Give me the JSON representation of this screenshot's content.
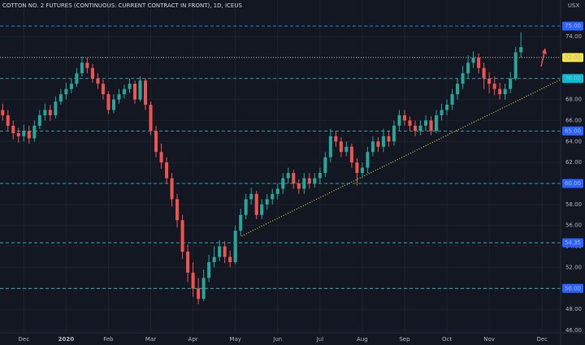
{
  "chart_data": {
    "type": "candlestick",
    "title": "COTTON NO. 2 FUTURES (CONTINUOUS: CURRENT CONTRACT IN FRONT), 1D, ICEUS",
    "currency": "USX",
    "up_color": "#26a69a",
    "down_color": "#ef5350",
    "grid": true,
    "categories": [
      null,
      null,
      null,
      null,
      "Dec",
      null,
      null,
      null,
      null,
      null,
      null,
      null,
      "2020",
      null,
      null,
      null,
      null,
      null,
      null,
      null,
      "Feb",
      null,
      null,
      null,
      null,
      null,
      null,
      null,
      "Mar",
      null,
      null,
      null,
      null,
      null,
      null,
      null,
      "Apr",
      null,
      null,
      null,
      null,
      null,
      null,
      null,
      "May",
      null,
      null,
      null,
      null,
      null,
      null,
      null,
      "Jun",
      null,
      null,
      null,
      null,
      null,
      null,
      null,
      "Jul",
      null,
      null,
      null,
      null,
      null,
      null,
      null,
      "Aug",
      null,
      null,
      null,
      null,
      null,
      null,
      null,
      "Sep",
      null,
      null,
      null,
      null,
      null,
      null,
      null,
      "Oct",
      null,
      null,
      null,
      null,
      null,
      null,
      null,
      "Nov",
      null,
      null,
      null,
      null,
      null,
      null,
      null,
      null,
      null,
      "Dec",
      null,
      null,
      null
    ],
    "open": [
      67.0,
      66.5,
      65.5,
      64.8,
      64.5,
      65.0,
      64.3,
      65.5,
      66.5,
      67.0,
      66.5,
      67.8,
      68.5,
      69.0,
      69.5,
      70.5,
      71.5,
      71.0,
      70.0,
      69.5,
      68.5,
      67.0,
      68.0,
      68.5,
      69.0,
      69.5,
      68.0,
      69.8,
      67.5,
      65.0,
      63.0,
      62.0,
      60.5,
      58.5,
      56.5,
      53.5,
      51.5,
      50.0,
      49.0,
      51.0,
      52.5,
      53.0,
      54.0,
      53.0,
      52.5,
      55.5,
      57.0,
      58.5,
      59.0,
      57.0,
      58.0,
      58.5,
      59.0,
      59.5,
      60.5,
      61.0,
      60.0,
      59.5,
      60.5,
      60.0,
      60.5,
      61.0,
      62.5,
      64.5,
      64.0,
      63.0,
      63.5,
      62.0,
      61.0,
      61.5,
      63.0,
      64.0,
      63.5,
      64.5,
      64.0,
      65.5,
      66.5,
      66.0,
      65.5,
      65.0,
      65.5,
      66.0,
      65.0,
      66.5,
      67.0,
      67.5,
      68.5,
      69.5,
      70.5,
      71.5,
      72.0,
      71.0,
      70.0,
      69.5,
      69.0,
      68.5,
      69.0,
      70.0,
      72.5,
      null,
      null,
      null,
      null,
      null,
      null,
      null
    ],
    "high": [
      67.6,
      67.0,
      66.0,
      65.3,
      65.6,
      65.5,
      66.0,
      67.0,
      67.6,
      67.5,
      68.3,
      69.0,
      69.6,
      70.0,
      71.0,
      72.1,
      72.0,
      71.4,
      70.5,
      69.9,
      68.8,
      68.5,
      69.0,
      69.4,
      70.0,
      69.8,
      70.2,
      70.0,
      67.8,
      65.5,
      63.8,
      62.5,
      61.0,
      59.0,
      57.0,
      54.2,
      52.5,
      51.0,
      51.8,
      53.2,
      54.0,
      54.6,
      54.5,
      53.6,
      56.0,
      57.6,
      59.0,
      59.6,
      59.3,
      58.5,
      59.0,
      59.5,
      60.0,
      61.0,
      61.5,
      61.3,
      60.4,
      61.0,
      61.0,
      61.0,
      61.5,
      63.0,
      65.2,
      65.0,
      64.4,
      64.0,
      63.8,
      62.4,
      62.0,
      63.5,
      64.5,
      64.4,
      65.2,
      65.0,
      66.0,
      67.0,
      67.0,
      66.4,
      66.0,
      66.0,
      66.5,
      66.4,
      67.0,
      67.6,
      68.0,
      69.0,
      70.0,
      71.2,
      72.2,
      72.6,
      72.4,
      71.5,
      70.6,
      70.2,
      69.6,
      69.5,
      70.6,
      73.0,
      74.4,
      null,
      null,
      null,
      null,
      null,
      null,
      null
    ],
    "low": [
      66.0,
      65.0,
      64.2,
      63.9,
      64.0,
      63.8,
      64.0,
      65.2,
      66.0,
      66.0,
      66.2,
      67.5,
      68.0,
      68.6,
      69.2,
      70.2,
      70.5,
      69.6,
      69.0,
      68.0,
      66.6,
      66.7,
      67.6,
      68.1,
      68.6,
      67.6,
      67.8,
      67.0,
      64.6,
      62.5,
      61.4,
      60.0,
      57.8,
      55.8,
      52.8,
      50.6,
      49.2,
      48.5,
      48.8,
      50.6,
      52.0,
      52.6,
      52.4,
      52.0,
      52.3,
      55.0,
      56.6,
      58.0,
      56.6,
      56.6,
      57.5,
      58.0,
      58.5,
      59.0,
      60.0,
      59.5,
      59.0,
      59.0,
      59.5,
      59.6,
      60.0,
      60.6,
      62.0,
      63.5,
      62.5,
      62.6,
      61.5,
      59.8,
      60.5,
      61.0,
      62.6,
      63.0,
      63.0,
      63.5,
      63.6,
      65.0,
      65.5,
      65.0,
      64.5,
      64.6,
      65.0,
      64.6,
      64.8,
      66.0,
      66.5,
      67.0,
      68.0,
      69.0,
      70.0,
      71.0,
      70.5,
      69.0,
      68.6,
      68.4,
      68.0,
      68.0,
      68.6,
      69.8,
      72.0,
      null,
      null,
      null,
      null,
      null,
      null,
      null
    ],
    "close": [
      66.5,
      65.5,
      64.8,
      64.5,
      65.0,
      64.3,
      65.5,
      66.5,
      67.0,
      66.5,
      67.8,
      68.5,
      69.0,
      69.5,
      70.5,
      71.5,
      71.0,
      70.0,
      69.5,
      68.5,
      67.0,
      68.0,
      68.5,
      69.0,
      69.5,
      68.0,
      69.8,
      67.5,
      65.0,
      63.0,
      62.0,
      60.5,
      58.5,
      56.5,
      53.5,
      51.5,
      50.0,
      49.0,
      51.0,
      52.5,
      53.0,
      54.0,
      53.0,
      52.5,
      55.5,
      57.0,
      58.5,
      59.0,
      57.0,
      58.0,
      58.5,
      59.0,
      59.5,
      60.5,
      61.0,
      60.0,
      59.5,
      60.5,
      60.0,
      60.5,
      61.0,
      62.5,
      64.5,
      64.0,
      63.0,
      63.5,
      62.0,
      61.0,
      61.5,
      63.0,
      64.0,
      63.5,
      64.5,
      64.0,
      65.5,
      66.5,
      66.0,
      65.5,
      65.0,
      65.5,
      66.0,
      65.0,
      66.5,
      67.0,
      67.5,
      68.5,
      69.5,
      70.5,
      71.5,
      72.0,
      71.0,
      70.0,
      69.5,
      69.0,
      68.5,
      69.0,
      70.0,
      72.5,
      73.0,
      null,
      null,
      null,
      null,
      null,
      null,
      null
    ],
    "ylim": [
      45.77,
      77.48
    ],
    "yticks": [
      {
        "value": 46,
        "label": "46.00"
      },
      {
        "value": 48,
        "label": "48.00"
      },
      {
        "value": 50,
        "label": "50.00"
      },
      {
        "value": 52,
        "label": "52.00"
      },
      {
        "value": 54,
        "label": "54.00"
      },
      {
        "value": 56,
        "label": "56.00"
      },
      {
        "value": 58,
        "label": "58.00"
      },
      {
        "value": 60,
        "label": "60.00"
      },
      {
        "value": 62,
        "label": "62.00"
      },
      {
        "value": 64,
        "label": "64.00"
      },
      {
        "value": 66,
        "label": "66.00"
      },
      {
        "value": 68,
        "label": "68.00"
      },
      {
        "value": 70,
        "label": "70.00"
      },
      {
        "value": 72,
        "label": "72.00"
      },
      {
        "value": 74,
        "label": "74.00"
      }
    ],
    "hlines": [
      {
        "value": 75,
        "label": "75.00",
        "color": "#2962ff",
        "line_color": "#2196f3"
      },
      {
        "value": 72,
        "label": "72.00",
        "color": "#f5e342",
        "line_color": "#e0e3eb"
      },
      {
        "value": 70,
        "label": "70.00",
        "color": "#00bcd4",
        "line_color": "#26c6da"
      },
      {
        "value": 65,
        "label": "65.00",
        "color": "#2962ff",
        "line_color": "#26c6da"
      },
      {
        "value": 60,
        "label": "60.00",
        "color": "#2962ff",
        "line_color": "#26c6da"
      },
      {
        "value": 54.35,
        "label": "54.35",
        "color": "#2962ff",
        "line_color": "#26c6da"
      },
      {
        "value": 50,
        "label": "50.00",
        "color": "#2962ff",
        "line_color": "#26c6da"
      }
    ],
    "trendline": {
      "x": [
        45.7,
        106
      ],
      "y": [
        55.0,
        69.9
      ],
      "color": "#f5e342"
    }
  }
}
